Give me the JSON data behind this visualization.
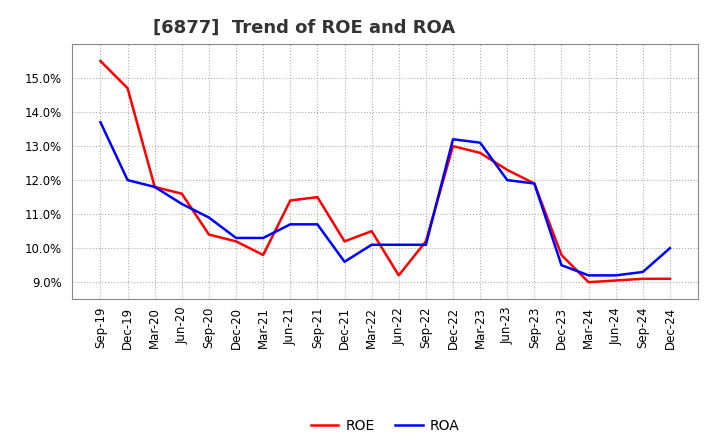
{
  "title": "[6877]  Trend of ROE and ROA",
  "x_labels": [
    "Sep-19",
    "Dec-19",
    "Mar-20",
    "Jun-20",
    "Sep-20",
    "Dec-20",
    "Mar-21",
    "Jun-21",
    "Sep-21",
    "Dec-21",
    "Mar-22",
    "Jun-22",
    "Sep-22",
    "Dec-22",
    "Mar-23",
    "Jun-23",
    "Sep-23",
    "Dec-23",
    "Mar-24",
    "Jun-24",
    "Sep-24",
    "Dec-24"
  ],
  "roe": [
    15.5,
    14.7,
    11.8,
    11.6,
    10.4,
    10.2,
    9.8,
    11.4,
    11.5,
    10.2,
    10.5,
    9.2,
    10.2,
    13.0,
    12.8,
    12.3,
    11.9,
    9.8,
    9.0,
    9.05,
    9.1,
    9.1
  ],
  "roa": [
    13.7,
    12.0,
    11.8,
    11.3,
    10.9,
    10.3,
    10.3,
    10.7,
    10.7,
    9.6,
    10.1,
    10.1,
    10.1,
    13.2,
    13.1,
    12.0,
    11.9,
    9.5,
    9.2,
    9.2,
    9.3,
    10.0
  ],
  "roe_color": "#ff0000",
  "roa_color": "#0000ff",
  "ylim": [
    8.5,
    16.0
  ],
  "yticks": [
    9.0,
    10.0,
    11.0,
    12.0,
    13.0,
    14.0,
    15.0
  ],
  "background_color": "#ffffff",
  "grid_color": "#b0b0b0",
  "title_fontsize": 13,
  "tick_fontsize": 8.5,
  "legend_fontsize": 10,
  "line_width": 1.8
}
